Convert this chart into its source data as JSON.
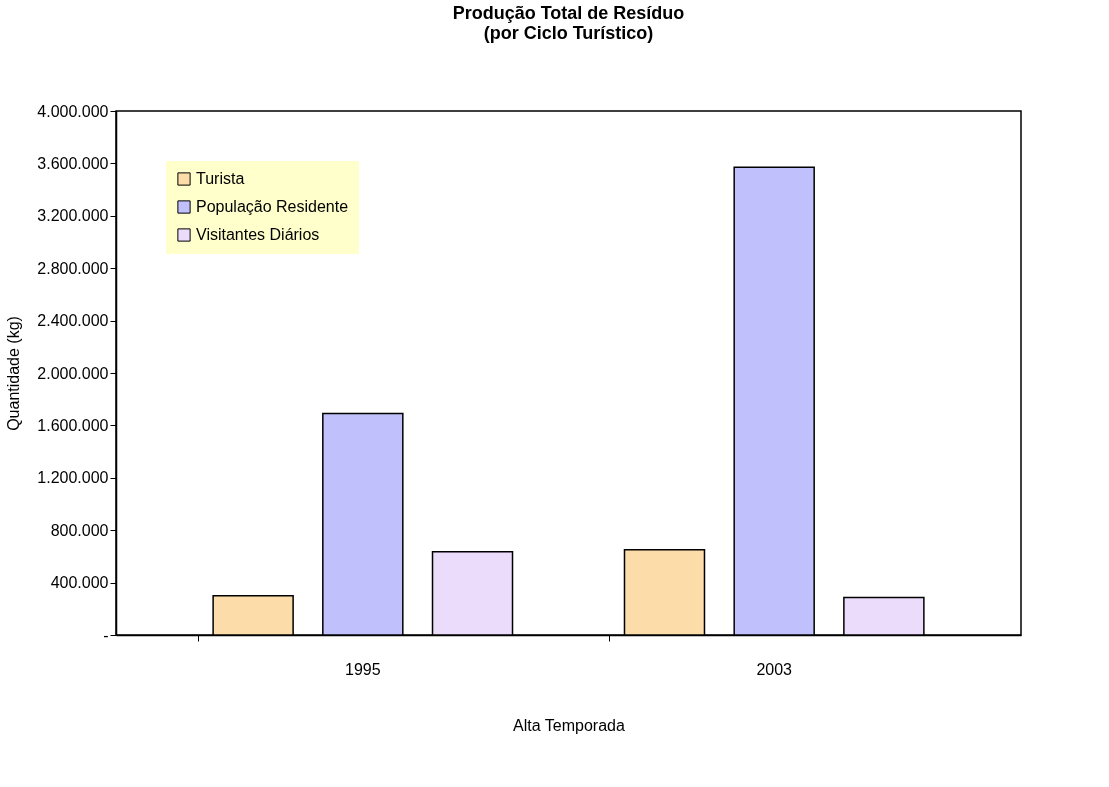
{
  "chart_data": {
    "type": "bar",
    "title": [
      "Produção Total de Resíduo",
      "(por Ciclo Turístico)"
    ],
    "xlabel": "Alta Temporada",
    "ylabel": "Quantidade (kg)",
    "categories": [
      "1995",
      "2003"
    ],
    "series": [
      {
        "name": "Turista",
        "color": "#fcdca8",
        "values": [
          300000,
          651000
        ]
      },
      {
        "name": "População Residente",
        "color": "#c0c0fc",
        "values": [
          1690000,
          3571000
        ]
      },
      {
        "name": "Visitantes Diários",
        "color": "#ecdcfc",
        "values": [
          635000,
          287000
        ]
      }
    ],
    "ylim": [
      0,
      4000000
    ],
    "yticks": [
      {
        "value": 0,
        "label": "-"
      },
      {
        "value": 400000,
        "label": "400.000"
      },
      {
        "value": 800000,
        "label": "800.000"
      },
      {
        "value": 1200000,
        "label": "1.200.000"
      },
      {
        "value": 1600000,
        "label": "1.600.000"
      },
      {
        "value": 2000000,
        "label": "2.000.000"
      },
      {
        "value": 2400000,
        "label": "2.400.000"
      },
      {
        "value": 2800000,
        "label": "2.800.000"
      },
      {
        "value": 3200000,
        "label": "3.200.000"
      },
      {
        "value": 3600000,
        "label": "3.600.000"
      },
      {
        "value": 4000000,
        "label": "4.000.000"
      }
    ],
    "grid": false,
    "legend": "top left"
  }
}
